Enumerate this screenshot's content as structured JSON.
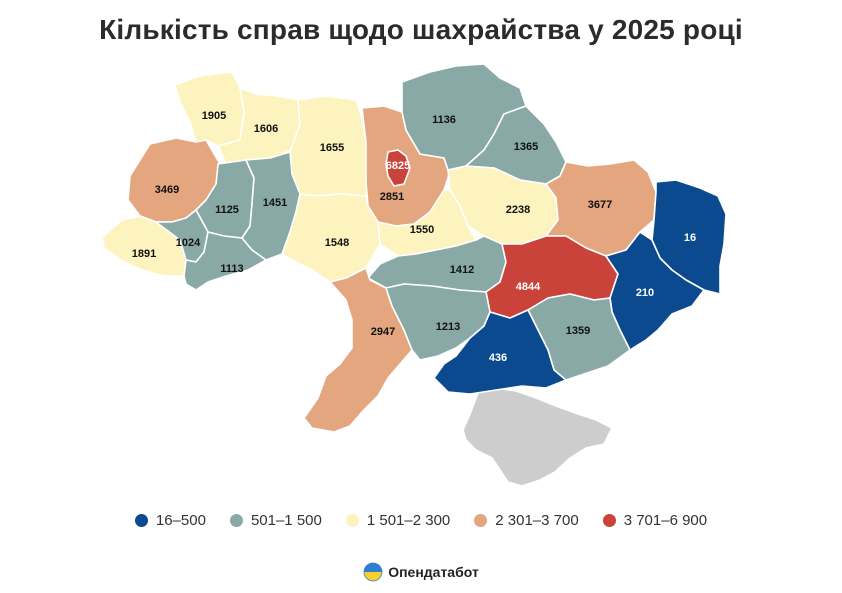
{
  "title": "Кількість справ щодо шахрайства у 2025 році",
  "colors": {
    "c1": "#0c4a8f",
    "c2": "#89a9a7",
    "c3": "#fdf3bf",
    "c4": "#e3a67f",
    "c5": "#c9433a",
    "crimea": "#cdcdcd"
  },
  "legend": [
    {
      "label": "16–500",
      "color": "#0c4a8f"
    },
    {
      "label": "501–1 500",
      "color": "#89a9a7"
    },
    {
      "label": "1 501–2 300",
      "color": "#fdf3bf"
    },
    {
      "label": "2 301–3 700",
      "color": "#e3a67f"
    },
    {
      "label": "3 701–6 900",
      "color": "#c9433a"
    }
  ],
  "regions": [
    {
      "id": "volyn",
      "value": "1905"
    },
    {
      "id": "rivne",
      "value": "1606"
    },
    {
      "id": "zhytomyr",
      "value": "1655"
    },
    {
      "id": "kyiv-oblast",
      "value": "2851"
    },
    {
      "id": "kyiv-city",
      "value": "6825"
    },
    {
      "id": "chernihiv",
      "value": "1136"
    },
    {
      "id": "sumy",
      "value": "1365"
    },
    {
      "id": "poltava",
      "value": "2238"
    },
    {
      "id": "kharkiv",
      "value": "3677"
    },
    {
      "id": "luhansk",
      "value": "16"
    },
    {
      "id": "lviv",
      "value": "3469"
    },
    {
      "id": "ternopil",
      "value": "1125"
    },
    {
      "id": "khmelnytskyi",
      "value": "1451"
    },
    {
      "id": "cherkasy",
      "value": "1550"
    },
    {
      "id": "vinnytsia",
      "value": "1548"
    },
    {
      "id": "zakarpattia",
      "value": "1891"
    },
    {
      "id": "ivano-frankivsk",
      "value": "1024"
    },
    {
      "id": "chernivtsi",
      "value": "1113"
    },
    {
      "id": "kirovohrad",
      "value": "1412"
    },
    {
      "id": "dnipropetrovsk",
      "value": "4844"
    },
    {
      "id": "donetsk",
      "value": "210"
    },
    {
      "id": "odesa",
      "value": "2947"
    },
    {
      "id": "mykolaiv",
      "value": "1213"
    },
    {
      "id": "zaporizhzhia",
      "value": "1359"
    },
    {
      "id": "kherson",
      "value": "436"
    }
  ],
  "brand": {
    "name": "Опендатабот",
    "logo_icon": "opendatabot-logo-icon"
  }
}
